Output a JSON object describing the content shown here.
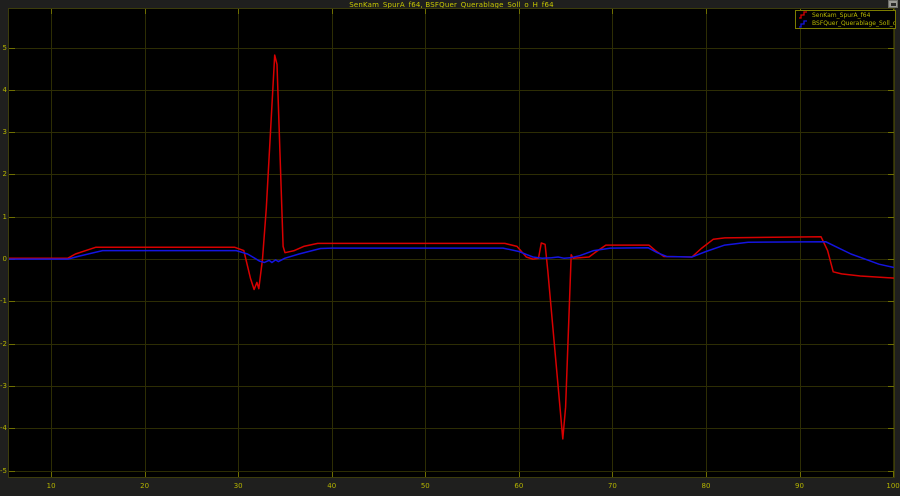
{
  "window": {
    "title": "SenKam_SpurA_f64, BSFQuer_Querablage_Soll_o_H_f64"
  },
  "legend": {
    "items": [
      {
        "label": "SenKam_SpurA_f64",
        "color": "#d80000",
        "icon": "step-signal-icon"
      },
      {
        "label": "BSFQuer_Querablage_Soll_o_H_f64",
        "color": "#1414e0",
        "icon": "step-signal-icon"
      }
    ]
  },
  "colors": {
    "background": "#1f1f1e",
    "plot_background": "#000000",
    "grid": "#2d2d04",
    "tick": "#6f6f00",
    "plot_border": "#3c3c0c",
    "tick_label": "#b4b400",
    "title": "#c8c800",
    "legend_border": "#7c7c00",
    "series_red": "#d80000",
    "series_blue": "#1414e0"
  },
  "chart_data": {
    "type": "line",
    "title": "SenKam_SpurA_f64, BSFQuer_Querablage_Soll_o_H_f64",
    "xlabel": "",
    "ylabel": "",
    "xlim": [
      5.5,
      100.1
    ],
    "ylim": [
      -5.15,
      5.91
    ],
    "x_ticks": [
      10,
      20,
      30,
      40,
      50,
      60,
      70,
      80,
      90,
      100
    ],
    "y_ticks": [
      5,
      4,
      3,
      2,
      1,
      0,
      -1,
      -2,
      -3,
      -4,
      -5
    ],
    "grid": true,
    "legend_position": "top-right",
    "series": [
      {
        "name": "SenKam_SpurA_f64",
        "color": "#d80000",
        "x": [
          5.5,
          11.8,
          12.6,
          14.8,
          29.6,
          30.6,
          31.3,
          31.7,
          32.0,
          32.2,
          32.6,
          33.0,
          33.9,
          34.15,
          34.8,
          35.0,
          36.0,
          37.0,
          38.5,
          58.5,
          59.8,
          60.8,
          61.5,
          62.1,
          62.4,
          62.8,
          63.1,
          64.7,
          65.0,
          65.6,
          65.8,
          67.5,
          68.3,
          69.3,
          73.9,
          74.6,
          75.5,
          78.5,
          79.5,
          80.8,
          82.0,
          92.3,
          93.0,
          93.6,
          94.5,
          96.5,
          100.1
        ],
        "y": [
          0.02,
          0.02,
          0.12,
          0.28,
          0.28,
          0.2,
          -0.45,
          -0.72,
          -0.55,
          -0.7,
          0.0,
          1.2,
          4.82,
          4.6,
          0.3,
          0.15,
          0.2,
          0.3,
          0.37,
          0.37,
          0.3,
          0.05,
          0.0,
          0.02,
          0.38,
          0.35,
          -0.3,
          -4.25,
          -3.5,
          0.1,
          0.02,
          0.05,
          0.18,
          0.33,
          0.33,
          0.2,
          0.06,
          0.05,
          0.25,
          0.47,
          0.5,
          0.53,
          0.2,
          -0.3,
          -0.35,
          -0.4,
          -0.45
        ]
      },
      {
        "name": "BSFQuer_Querablage_Soll_o_H_f64",
        "color": "#1414e0",
        "x": [
          5.5,
          11.8,
          13.0,
          15.5,
          29.8,
          31.0,
          32.3,
          32.8,
          33.3,
          33.6,
          34.0,
          34.3,
          35.0,
          36.5,
          38.8,
          40.0,
          58.3,
          60.0,
          61.5,
          62.5,
          63.5,
          64.2,
          64.8,
          65.5,
          66.5,
          68.0,
          69.8,
          73.8,
          74.8,
          75.8,
          78.5,
          80.0,
          82.0,
          84.5,
          92.8,
          94.0,
          95.5,
          97.0,
          98.5,
          100.1
        ],
        "y": [
          0.0,
          0.0,
          0.07,
          0.2,
          0.2,
          0.12,
          -0.05,
          -0.08,
          -0.03,
          -0.08,
          -0.02,
          -0.06,
          0.02,
          0.12,
          0.25,
          0.26,
          0.26,
          0.18,
          0.05,
          0.02,
          0.03,
          0.05,
          0.02,
          0.03,
          0.08,
          0.2,
          0.26,
          0.27,
          0.15,
          0.06,
          0.05,
          0.18,
          0.33,
          0.4,
          0.41,
          0.28,
          0.12,
          0.0,
          -0.12,
          -0.2
        ]
      }
    ]
  }
}
